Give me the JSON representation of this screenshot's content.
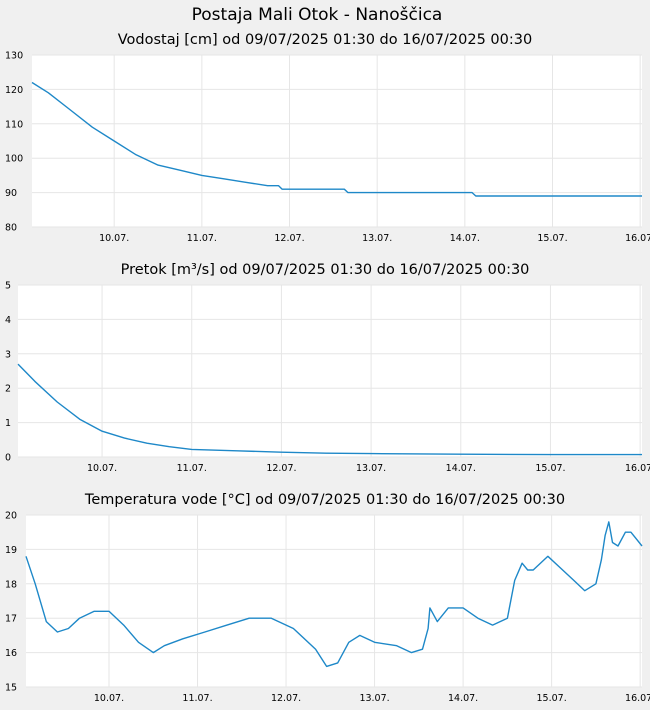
{
  "page": {
    "title": "Postaja Mali Otok - Nanoščica"
  },
  "x_ticks": [
    "10.07.",
    "11.07.",
    "12.07.",
    "13.07.",
    "14.07.",
    "15.07.",
    "16.07."
  ],
  "colors": {
    "line": "#1e88c8",
    "grid": "#e6e6e6",
    "plot_background": "#ffffff",
    "page_background": "#f0f0f0"
  },
  "chart_data": [
    {
      "type": "line",
      "title": "Vodostaj [cm] od 09/07/2025 01:30 do 16/07/2025 00:30",
      "xlabel": "",
      "ylabel": "",
      "xlim": [
        "2025-07-09 01:30",
        "2025-07-16 00:30"
      ],
      "ylim": [
        80,
        130
      ],
      "y_ticks": [
        "80",
        "90",
        "100",
        "110",
        "120",
        "130"
      ],
      "grid": true,
      "legend": "none",
      "series": [
        {
          "x": [
            "2025-07-09 01:30",
            "2025-07-09 06:00",
            "2025-07-09 12:00",
            "2025-07-09 18:00",
            "2025-07-10 00:00",
            "2025-07-10 06:00",
            "2025-07-10 12:00",
            "2025-07-10 18:00",
            "2025-07-11 00:00",
            "2025-07-11 06:00",
            "2025-07-11 12:00",
            "2025-07-11 18:00",
            "2025-07-11 21:00",
            "2025-07-11 22:00",
            "2025-07-12 00:00",
            "2025-07-12 06:00",
            "2025-07-12 12:00",
            "2025-07-12 15:00",
            "2025-07-12 16:00",
            "2025-07-12 18:00",
            "2025-07-13 00:00",
            "2025-07-13 12:00",
            "2025-07-14 00:00",
            "2025-07-14 02:00",
            "2025-07-14 03:00",
            "2025-07-14 12:00",
            "2025-07-15 00:00",
            "2025-07-15 12:00",
            "2025-07-16 00:30"
          ],
          "y": [
            122,
            119,
            114,
            109,
            105,
            101,
            98,
            96.5,
            95,
            94,
            93,
            92,
            92,
            91,
            91,
            91,
            91,
            91,
            90,
            90,
            90,
            90,
            90,
            90,
            89,
            89,
            89,
            89,
            89
          ]
        }
      ]
    },
    {
      "type": "line",
      "title": "Pretok [m³/s] od 09/07/2025 01:30 do 16/07/2025 00:30",
      "xlabel": "",
      "ylabel": "",
      "xlim": [
        "2025-07-09 01:30",
        "2025-07-16 00:30"
      ],
      "ylim": [
        0,
        5
      ],
      "y_ticks": [
        "0",
        "1",
        "2",
        "3",
        "4",
        "5"
      ],
      "grid": true,
      "legend": "none",
      "series": [
        {
          "x": [
            "2025-07-09 01:30",
            "2025-07-09 06:00",
            "2025-07-09 12:00",
            "2025-07-09 18:00",
            "2025-07-10 00:00",
            "2025-07-10 06:00",
            "2025-07-10 12:00",
            "2025-07-10 18:00",
            "2025-07-11 00:00",
            "2025-07-11 12:00",
            "2025-07-12 00:00",
            "2025-07-12 12:00",
            "2025-07-13 00:00",
            "2025-07-14 00:00",
            "2025-07-15 00:00",
            "2025-07-16 00:30"
          ],
          "y": [
            2.7,
            2.2,
            1.6,
            1.1,
            0.75,
            0.55,
            0.4,
            0.3,
            0.22,
            0.18,
            0.14,
            0.11,
            0.1,
            0.08,
            0.07,
            0.07
          ]
        }
      ]
    },
    {
      "type": "line",
      "title": "Temperatura vode [°C] od 09/07/2025 01:30 do 16/07/2025 00:30",
      "xlabel": "",
      "ylabel": "",
      "xlim": [
        "2025-07-09 01:30",
        "2025-07-16 00:30"
      ],
      "ylim": [
        15,
        20
      ],
      "y_ticks": [
        "15",
        "16",
        "17",
        "18",
        "19",
        "20"
      ],
      "grid": true,
      "legend": "none",
      "series": [
        {
          "x": [
            "2025-07-09 01:30",
            "2025-07-09 04:00",
            "2025-07-09 07:00",
            "2025-07-09 10:00",
            "2025-07-09 13:00",
            "2025-07-09 16:00",
            "2025-07-09 20:00",
            "2025-07-10 00:00",
            "2025-07-10 04:00",
            "2025-07-10 08:00",
            "2025-07-10 12:00",
            "2025-07-10 15:00",
            "2025-07-10 20:00",
            "2025-07-11 02:00",
            "2025-07-11 08:00",
            "2025-07-11 14:00",
            "2025-07-11 20:00",
            "2025-07-12 02:00",
            "2025-07-12 08:00",
            "2025-07-12 11:00",
            "2025-07-12 14:00",
            "2025-07-12 17:00",
            "2025-07-12 20:00",
            "2025-07-13 00:00",
            "2025-07-13 06:00",
            "2025-07-13 10:00",
            "2025-07-13 13:00",
            "2025-07-13 14:30",
            "2025-07-13 15:00",
            "2025-07-13 17:00",
            "2025-07-13 20:00",
            "2025-07-14 00:00",
            "2025-07-14 04:00",
            "2025-07-14 08:00",
            "2025-07-14 12:00",
            "2025-07-14 14:00",
            "2025-07-14 16:00",
            "2025-07-14 17:30",
            "2025-07-14 19:00",
            "2025-07-14 23:00",
            "2025-07-15 02:00",
            "2025-07-15 06:00",
            "2025-07-15 09:00",
            "2025-07-15 12:00",
            "2025-07-15 13:30",
            "2025-07-15 14:30",
            "2025-07-15 15:30",
            "2025-07-15 16:30",
            "2025-07-15 18:00",
            "2025-07-15 20:00",
            "2025-07-15 21:30",
            "2025-07-16 00:30"
          ],
          "y": [
            18.8,
            18.0,
            16.9,
            16.6,
            16.7,
            17.0,
            17.2,
            17.2,
            16.8,
            16.3,
            16.0,
            16.2,
            16.4,
            16.6,
            16.8,
            17.0,
            17.0,
            16.7,
            16.1,
            15.6,
            15.7,
            16.3,
            16.5,
            16.3,
            16.2,
            16.0,
            16.1,
            16.7,
            17.3,
            16.9,
            17.3,
            17.3,
            17.0,
            16.8,
            17.0,
            18.1,
            18.6,
            18.4,
            18.4,
            18.8,
            18.5,
            18.1,
            17.8,
            18.0,
            18.7,
            19.4,
            19.8,
            19.2,
            19.1,
            19.5,
            19.5,
            19.1
          ]
        }
      ]
    }
  ]
}
